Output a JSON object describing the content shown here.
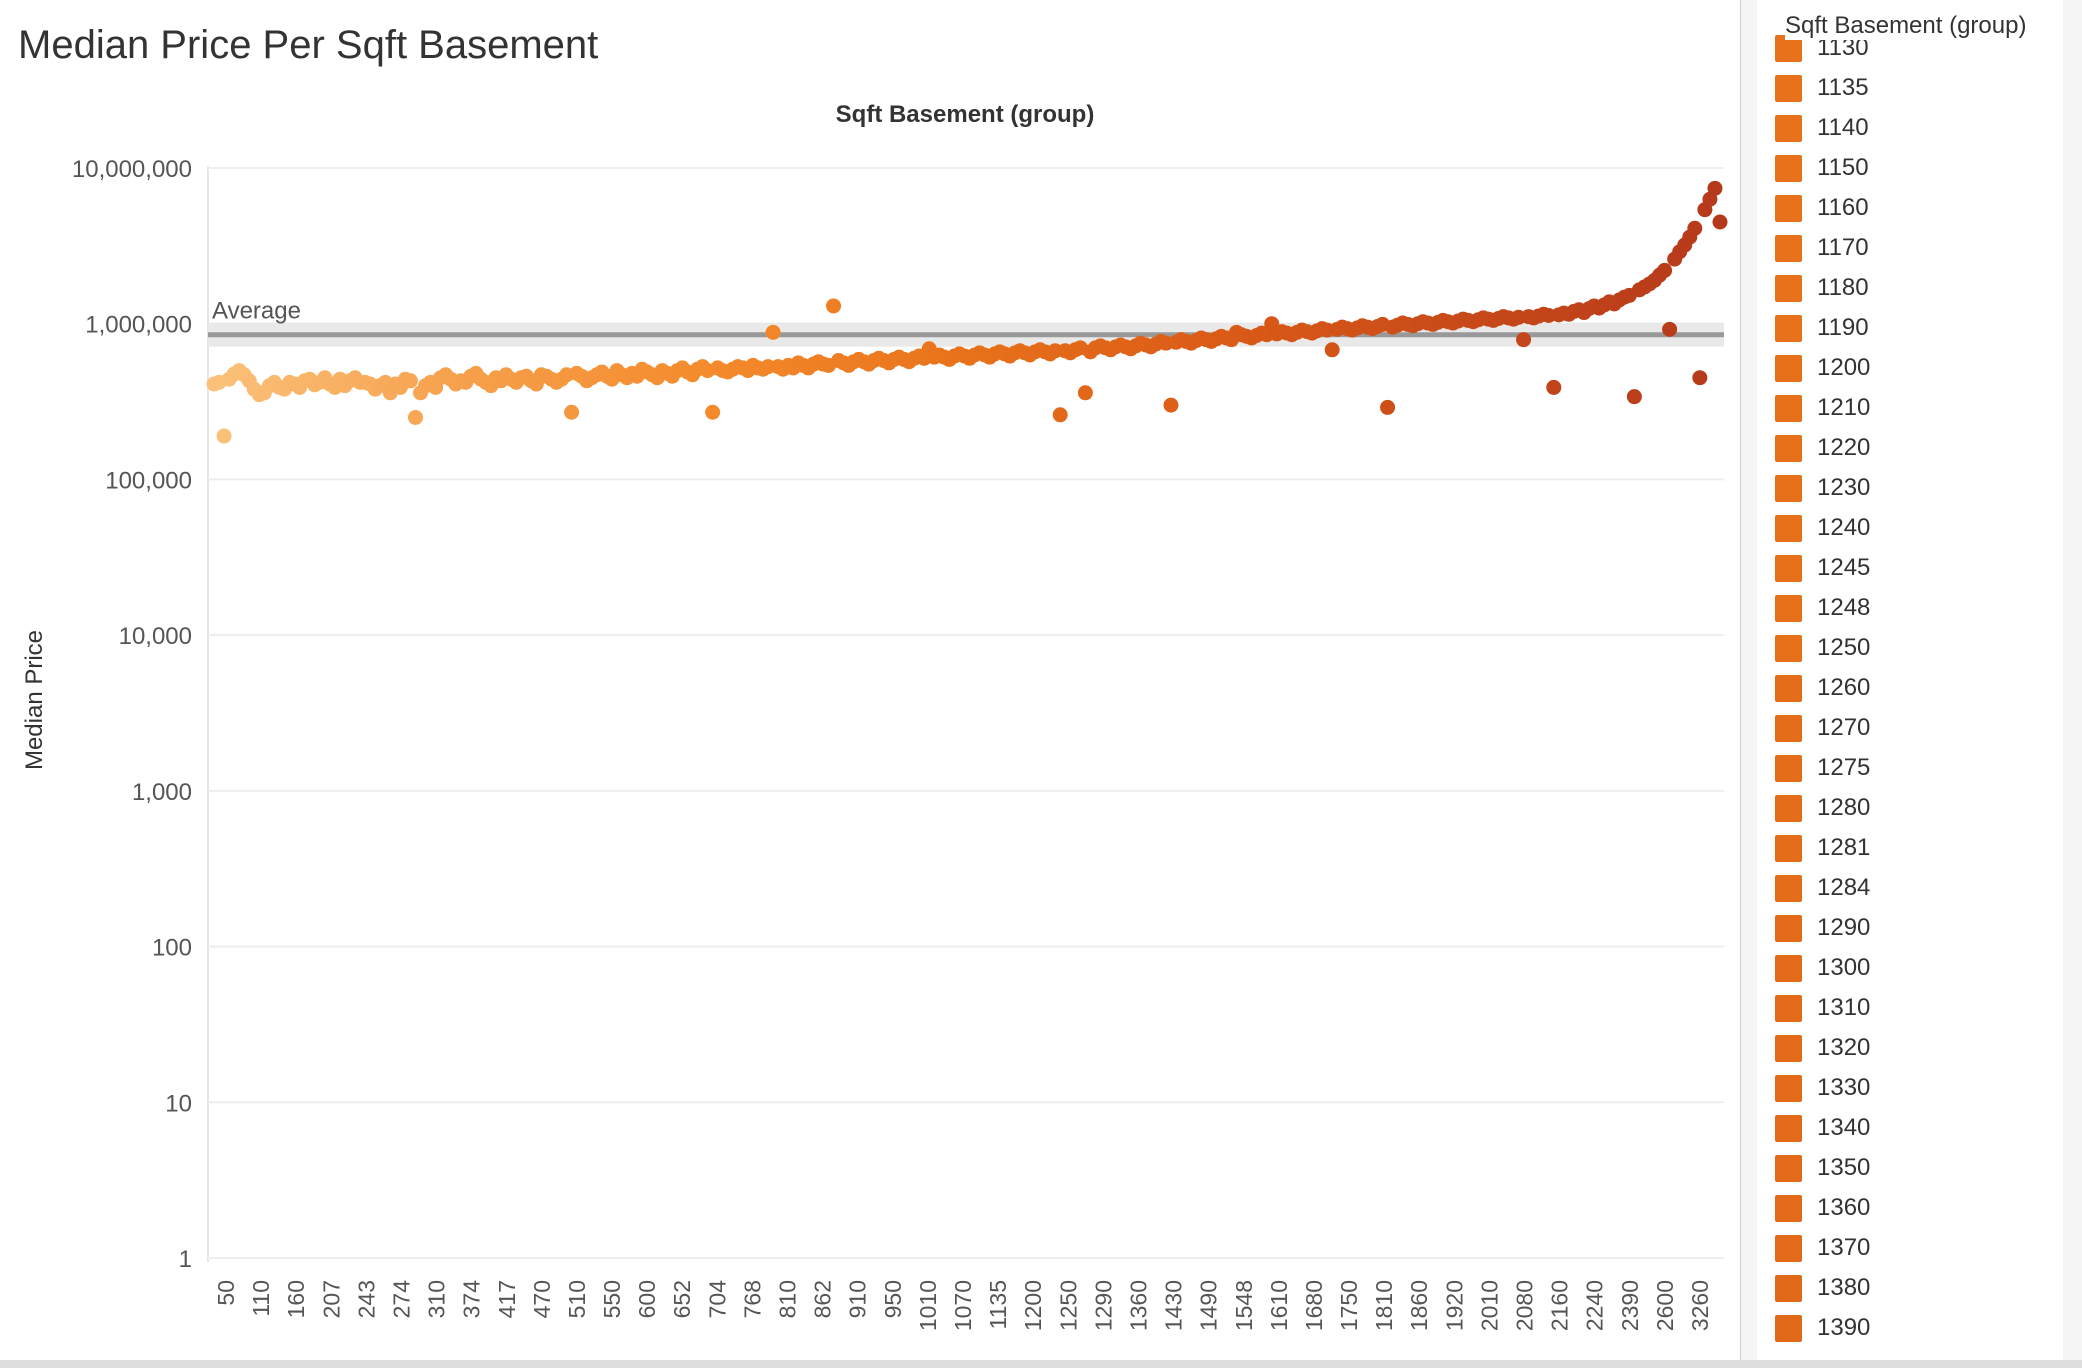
{
  "chart_data": {
    "type": "scatter",
    "title": "Median Price Per Sqft Basement",
    "header": "Sqft Basement (group)",
    "ylabel": "Median Price",
    "yscale": "log",
    "ylim": [
      1,
      10000000
    ],
    "yticks": [
      "10,000,000",
      "1,000,000",
      "100,000",
      "10,000",
      "1,000",
      "100",
      "10",
      "1"
    ],
    "reference_line": {
      "label": "Average",
      "value": 850000
    },
    "xticks": [
      "50",
      "110",
      "160",
      "207",
      "243",
      "274",
      "310",
      "374",
      "417",
      "470",
      "510",
      "550",
      "600",
      "652",
      "704",
      "768",
      "810",
      "862",
      "910",
      "950",
      "1010",
      "1070",
      "1135",
      "1200",
      "1250",
      "1290",
      "1360",
      "1430",
      "1490",
      "1548",
      "1610",
      "1680",
      "1750",
      "1810",
      "1860",
      "1920",
      "2010",
      "2080",
      "2160",
      "2240",
      "2390",
      "2600",
      "3260"
    ],
    "grid": true,
    "legend_placement": "right",
    "colors": [
      "#fbc17a",
      "#f6a04c",
      "#f48a2b",
      "#e8721b",
      "#db5b17",
      "#c84a19",
      "#b5391b"
    ],
    "values": [
      410000,
      420000,
      460000,
      440000,
      475000,
      500000,
      470000,
      430000,
      380000,
      350000,
      360000,
      400000,
      420000,
      390000,
      380000,
      420000,
      410000,
      390000,
      430000,
      440000,
      405000,
      420000,
      450000,
      410000,
      390000,
      440000,
      400000,
      430000,
      450000,
      420000,
      420000,
      410000,
      380000,
      400000,
      420000,
      360000,
      410000,
      390000,
      440000,
      430000,
      380000,
      360000,
      400000,
      420000,
      390000,
      450000,
      470000,
      440000,
      410000,
      430000,
      420000,
      460000,
      480000,
      440000,
      420000,
      400000,
      450000,
      430000,
      470000,
      440000,
      420000,
      450000,
      460000,
      430000,
      410000,
      470000,
      460000,
      440000,
      420000,
      440000,
      470000,
      450000,
      480000,
      460000,
      430000,
      450000,
      470000,
      490000,
      460000,
      440000,
      500000,
      470000,
      450000,
      480000,
      460000,
      510000,
      490000,
      470000,
      450000,
      500000,
      480000,
      460000,
      500000,
      520000,
      490000,
      470000,
      510000,
      530000,
      500000,
      480000,
      520000,
      500000,
      490000,
      510000,
      530000,
      520000,
      500000,
      540000,
      520000,
      510000,
      530000,
      550000,
      530000,
      510000,
      540000,
      520000,
      560000,
      540000,
      520000,
      550000,
      570000,
      550000,
      540000,
      560000,
      580000,
      560000,
      540000,
      570000,
      590000,
      570000,
      550000,
      580000,
      600000,
      580000,
      560000,
      590000,
      610000,
      590000,
      570000,
      600000,
      620000,
      600000,
      580000,
      610000,
      630000,
      610000,
      590000,
      620000,
      640000,
      620000,
      600000,
      630000,
      650000,
      630000,
      610000,
      640000,
      660000,
      640000,
      620000,
      650000,
      670000,
      650000,
      630000,
      660000,
      680000,
      660000,
      640000,
      670000,
      690000,
      670000,
      650000,
      680000,
      700000,
      680000,
      660000,
      700000,
      720000,
      700000,
      680000,
      710000,
      730000,
      710000,
      690000,
      720000,
      750000,
      730000,
      710000,
      740000,
      770000,
      750000,
      730000,
      760000,
      790000,
      770000,
      750000,
      780000,
      810000,
      790000,
      770000,
      800000,
      830000,
      810000,
      790000,
      820000,
      850000,
      830000,
      810000,
      840000,
      870000,
      850000,
      830000,
      860000,
      890000,
      870000,
      850000,
      880000,
      910000,
      890000,
      870000,
      900000,
      930000,
      910000,
      890000,
      920000,
      950000,
      930000,
      910000,
      940000,
      970000,
      950000,
      930000,
      960000,
      990000,
      970000,
      950000,
      980000,
      1010000,
      990000,
      970000,
      1000000,
      1030000,
      1010000,
      990000,
      1020000,
      1050000,
      1030000,
      1010000,
      1040000,
      1070000,
      1050000,
      1030000,
      1060000,
      1090000,
      1070000,
      1050000,
      1080000,
      1110000,
      1090000,
      1070000,
      1100000,
      1130000,
      1110000,
      1090000,
      1120000,
      1150000,
      1130000,
      1110000,
      1140000,
      1170000,
      1150000,
      1200000,
      1230000,
      1180000,
      1250000,
      1300000,
      1260000,
      1320000,
      1380000,
      1340000,
      1420000,
      1480000,
      1520000,
      1580000,
      1650000,
      1720000,
      1800000,
      1900000,
      2050000,
      2200000,
      2400000,
      2600000,
      2900000,
      3200000,
      3600000,
      4100000,
      4700000,
      5400000,
      6300000,
      7400000,
      4500000
    ],
    "outliers": [
      {
        "i": 2,
        "value": 190000
      },
      {
        "i": 40,
        "value": 250000
      },
      {
        "i": 71,
        "value": 270000
      },
      {
        "i": 99,
        "value": 270000
      },
      {
        "i": 111,
        "value": 880000
      },
      {
        "i": 123,
        "value": 1300000
      },
      {
        "i": 142,
        "value": 690000
      },
      {
        "i": 168,
        "value": 260000
      },
      {
        "i": 173,
        "value": 360000
      },
      {
        "i": 190,
        "value": 300000
      },
      {
        "i": 203,
        "value": 880000
      },
      {
        "i": 210,
        "value": 1000000
      },
      {
        "i": 222,
        "value": 680000
      },
      {
        "i": 233,
        "value": 290000
      },
      {
        "i": 260,
        "value": 790000
      },
      {
        "i": 266,
        "value": 390000
      },
      {
        "i": 282,
        "value": 340000
      },
      {
        "i": 289,
        "value": 920000
      },
      {
        "i": 295,
        "value": 450000
      },
      {
        "i": 330,
        "value": 460000
      },
      {
        "i": 336,
        "value": 1100000
      },
      {
        "i": 341,
        "value": 360000
      },
      {
        "i": 345,
        "value": 1000000
      },
      {
        "i": 358,
        "value": 580000
      },
      {
        "i": 366,
        "value": 1400000
      },
      {
        "i": 380,
        "value": 1700000
      },
      {
        "i": 386,
        "value": 1550000
      },
      {
        "i": 393,
        "value": 660000
      },
      {
        "i": 397,
        "value": 560000
      },
      {
        "i": 408,
        "value": 2500000
      },
      {
        "i": 410,
        "value": 1800000
      },
      {
        "i": 425,
        "value": 2400000
      },
      {
        "i": 431,
        "value": 450000
      },
      {
        "i": 448,
        "value": 480000
      },
      {
        "i": 452,
        "value": 1800000
      },
      {
        "i": 470,
        "value": 2300000
      },
      {
        "i": 479,
        "value": 540000
      },
      {
        "i": 484,
        "value": 3100000
      },
      {
        "i": 488,
        "value": 3300000
      },
      {
        "i": 499,
        "value": 800000
      },
      {
        "i": 505,
        "value": 1500000
      },
      {
        "i": 508,
        "value": 7000000
      },
      {
        "i": 512,
        "value": 3200000
      },
      {
        "i": 521,
        "value": 1500000
      },
      {
        "i": 530,
        "value": 850000
      },
      {
        "i": 533,
        "value": 3700000
      },
      {
        "i": 538,
        "value": 5600000
      },
      {
        "i": 545,
        "value": 1900000
      }
    ]
  },
  "legend": {
    "title": "Sqft Basement (group)",
    "items": [
      {
        "label": "1130",
        "color": "#e8721b"
      },
      {
        "label": "1135",
        "color": "#e8721b"
      },
      {
        "label": "1140",
        "color": "#e8721b"
      },
      {
        "label": "1150",
        "color": "#e8721b"
      },
      {
        "label": "1160",
        "color": "#e8721b"
      },
      {
        "label": "1170",
        "color": "#e8721b"
      },
      {
        "label": "1180",
        "color": "#e8721b"
      },
      {
        "label": "1190",
        "color": "#e8721b"
      },
      {
        "label": "1200",
        "color": "#e66f1a"
      },
      {
        "label": "1210",
        "color": "#e66f1a"
      },
      {
        "label": "1220",
        "color": "#e66f1a"
      },
      {
        "label": "1230",
        "color": "#e66f1a"
      },
      {
        "label": "1240",
        "color": "#e66f1a"
      },
      {
        "label": "1245",
        "color": "#e66f1a"
      },
      {
        "label": "1248",
        "color": "#e66f1a"
      },
      {
        "label": "1250",
        "color": "#e66f1a"
      },
      {
        "label": "1260",
        "color": "#e46d1a"
      },
      {
        "label": "1270",
        "color": "#e46d1a"
      },
      {
        "label": "1275",
        "color": "#e46d1a"
      },
      {
        "label": "1280",
        "color": "#e46d1a"
      },
      {
        "label": "1281",
        "color": "#e46d1a"
      },
      {
        "label": "1284",
        "color": "#e46d1a"
      },
      {
        "label": "1290",
        "color": "#e36b1a"
      },
      {
        "label": "1300",
        "color": "#e36b1a"
      },
      {
        "label": "1310",
        "color": "#e36b1a"
      },
      {
        "label": "1320",
        "color": "#e36b1a"
      },
      {
        "label": "1330",
        "color": "#e36b1a"
      },
      {
        "label": "1340",
        "color": "#e26a1a"
      },
      {
        "label": "1350",
        "color": "#e26a1a"
      },
      {
        "label": "1360",
        "color": "#e26a1a"
      },
      {
        "label": "1370",
        "color": "#e26a1a"
      },
      {
        "label": "1380",
        "color": "#e1691a"
      },
      {
        "label": "1390",
        "color": "#e1691a"
      }
    ]
  }
}
